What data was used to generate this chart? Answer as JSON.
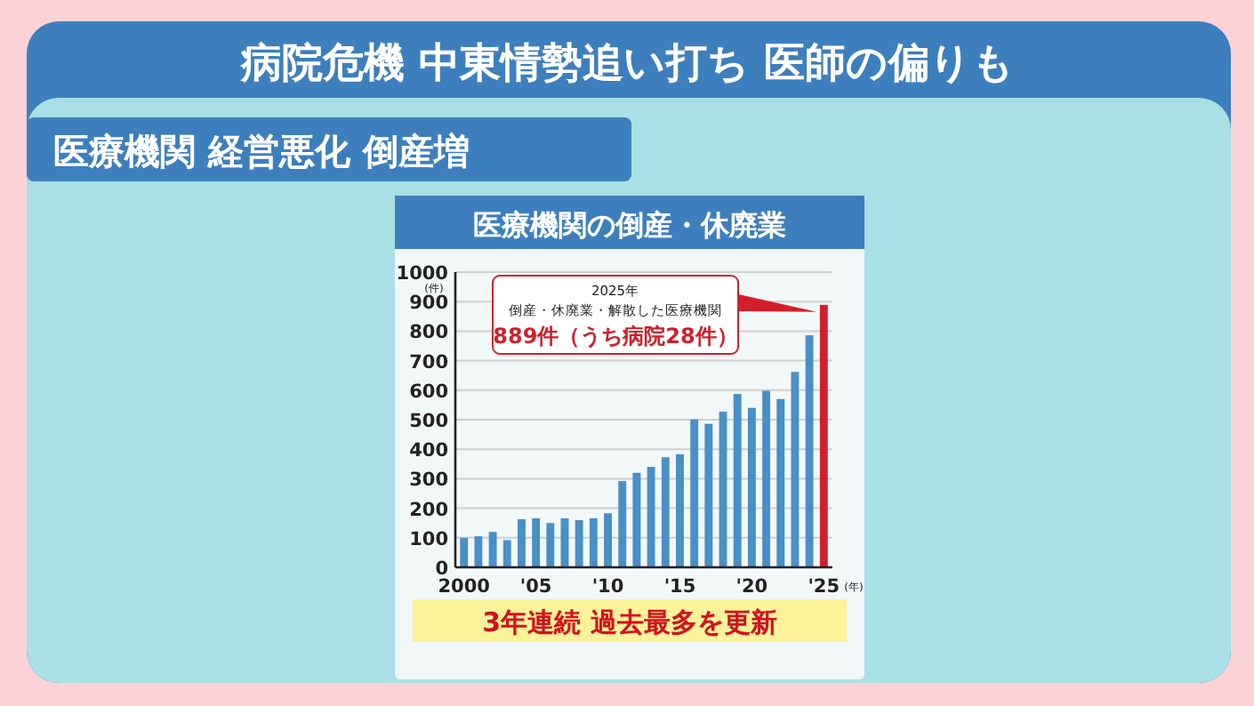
{
  "chart_data": {
    "type": "bar",
    "title": "医療機関の倒産・休廃業",
    "xlabel": "(年)",
    "ylabel": "(件)",
    "x": [
      2000,
      2001,
      2002,
      2003,
      2004,
      2005,
      2006,
      2007,
      2008,
      2009,
      2010,
      2011,
      2012,
      2013,
      2014,
      2015,
      2016,
      2017,
      2018,
      2019,
      2020,
      2021,
      2022,
      2023,
      2024,
      2025
    ],
    "values": [
      100,
      105,
      120,
      92,
      163,
      166,
      150,
      166,
      160,
      166,
      183,
      292,
      320,
      340,
      373,
      383,
      501,
      486,
      527,
      587,
      540,
      598,
      570,
      662,
      786,
      889
    ],
    "colors": [
      "#4a8fc6",
      "#4a8fc6",
      "#4a8fc6",
      "#4a8fc6",
      "#4a8fc6",
      "#4a8fc6",
      "#4a8fc6",
      "#4a8fc6",
      "#4a8fc6",
      "#4a8fc6",
      "#4a8fc6",
      "#4a8fc6",
      "#4a8fc6",
      "#4a8fc6",
      "#4a8fc6",
      "#4a8fc6",
      "#4a8fc6",
      "#4a8fc6",
      "#4a8fc6",
      "#4a8fc6",
      "#4a8fc6",
      "#4a8fc6",
      "#4a8fc6",
      "#4a8fc6",
      "#4a8fc6",
      "#d21f2c"
    ],
    "xlim": [
      1999.4,
      2025.6
    ],
    "xticks": [
      {
        "value": 2000,
        "label": "2000"
      },
      {
        "value": 2005,
        "label": "'05"
      },
      {
        "value": 2010,
        "label": "'10"
      },
      {
        "value": 2015,
        "label": "'15"
      },
      {
        "value": 2020,
        "label": "'20"
      },
      {
        "value": 2025,
        "label": "'25"
      }
    ],
    "ylim": [
      0,
      1000
    ],
    "yticks": [
      0,
      100,
      200,
      300,
      400,
      500,
      600,
      700,
      800,
      900,
      1000
    ],
    "grid": "y",
    "annotations": [
      "病院危機 中東情勢追い打ち 医師の偏りも",
      "医療機関 経営悪化 倒産増",
      "3年連続 過去最多を更新",
      "2025年",
      "倒産・休廃業・解散した医療機関",
      {
        "text": "889件（うち病院28件）",
        "x": 2025,
        "y": 889
      }
    ]
  }
}
